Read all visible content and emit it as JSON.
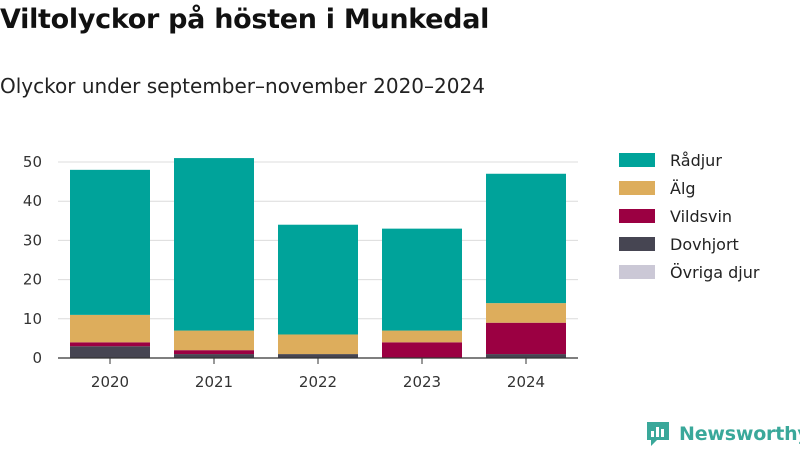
{
  "chart_data": {
    "type": "bar",
    "stacked": true,
    "title": "Viltolyckor på hösten i Munkedal",
    "subtitle": "Olyckor under september–november 2020–2024",
    "xlabel": "",
    "ylabel": "",
    "categories": [
      "2020",
      "2021",
      "2022",
      "2023",
      "2024"
    ],
    "ylim": [
      0,
      50
    ],
    "yticks": [
      0,
      10,
      20,
      30,
      40,
      50
    ],
    "grid": true,
    "legend_position": "right",
    "series": [
      {
        "name": "Övriga djur",
        "color": "#cbc8d6",
        "values": [
          0,
          0,
          0,
          0,
          0
        ]
      },
      {
        "name": "Dovhjort",
        "color": "#464552",
        "values": [
          3,
          1,
          1,
          0,
          1
        ]
      },
      {
        "name": "Vildsvin",
        "color": "#9b0042",
        "values": [
          1,
          1,
          0,
          4,
          8
        ]
      },
      {
        "name": "Älg",
        "color": "#ddad5c",
        "values": [
          7,
          5,
          5,
          3,
          5
        ]
      },
      {
        "name": "Rådjur",
        "color": "#00a39a",
        "values": [
          37,
          44,
          28,
          26,
          33
        ]
      }
    ],
    "legend_order": [
      "Rådjur",
      "Älg",
      "Vildsvin",
      "Dovhjort",
      "Övriga djur"
    ]
  },
  "brand": {
    "name": "Newsworthy",
    "color": "#3aa89a"
  }
}
